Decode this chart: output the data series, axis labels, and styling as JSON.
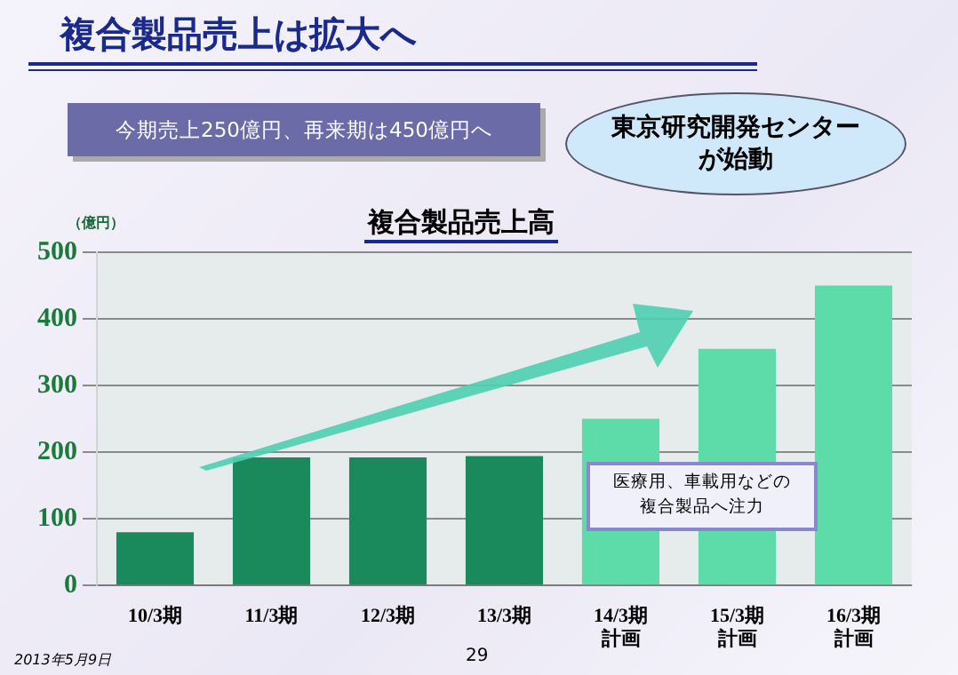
{
  "chart_data": {
    "type": "bar",
    "title": "複合製品売上は拡大へ",
    "subtitle": "複合製品売上高",
    "ylabel": "（億円）",
    "categories": [
      "10/3期",
      "11/3期",
      "12/3期",
      "13/3期",
      "14/3期計画",
      "15/3期計画",
      "16/3期計画"
    ],
    "values": [
      80,
      192,
      192,
      194,
      250,
      355,
      450
    ],
    "colors": [
      "#1a8a5c",
      "#1a8a5c",
      "#1a8a5c",
      "#1a8a5c",
      "#5ddcaa",
      "#5ddcaa",
      "#5ddcaa"
    ],
    "ylim": [
      0,
      500
    ],
    "yticks": [
      0,
      100,
      200,
      300,
      400,
      500
    ],
    "grid": "y",
    "legend": false,
    "annotations": [
      "今期売上250億円、再来期は450億円へ",
      "東京研究開発センターが始動",
      "医療用、車載用などの複合製品へ注力",
      "2013年5月9日",
      "29"
    ]
  }
}
